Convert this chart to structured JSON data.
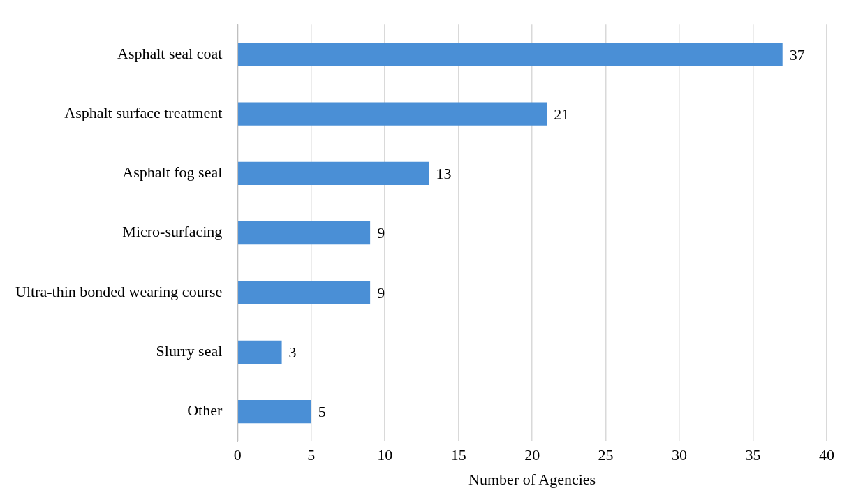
{
  "chart_data": {
    "type": "bar",
    "orientation": "horizontal",
    "xlabel": "Number of Agencies",
    "categories": [
      "Asphalt seal coat",
      "Asphalt surface treatment",
      "Asphalt fog seal",
      "Micro-surfacing",
      "Ultra-thin bonded wearing course",
      "Slurry seal",
      "Other"
    ],
    "values": [
      37,
      21,
      13,
      9,
      9,
      3,
      5
    ],
    "color": "#4a8fd6",
    "xlim": [
      0,
      40
    ],
    "xticks": [
      0,
      5,
      10,
      15,
      20,
      25,
      30,
      35,
      40
    ],
    "grid": "x",
    "data_labels": true,
    "legend": false
  }
}
